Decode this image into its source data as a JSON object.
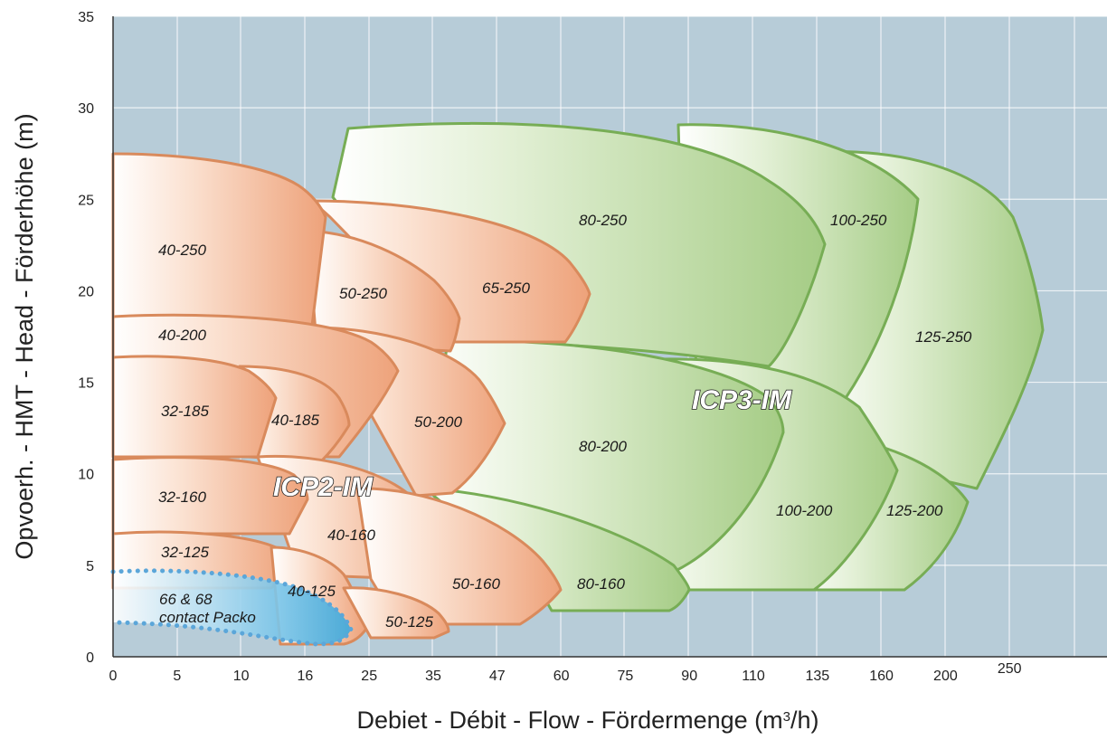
{
  "chart_data": {
    "type": "area",
    "title": "",
    "xlabel_main": "Debiet - Débit - Flow - Fördermenge (m",
    "xlabel_sup": "3",
    "xlabel_end": "/h)",
    "ylabel": "Opvoerh. - HMT - Head - Förderhöhe (m)",
    "x_ticks": [
      "0",
      "5",
      "10",
      "16",
      "25",
      "35",
      "47",
      "60",
      "75",
      "90",
      "110",
      "135",
      "160",
      "200",
      "250"
    ],
    "y_ticks": [
      0,
      5,
      10,
      15,
      20,
      25,
      30,
      35
    ],
    "ylim": [
      0,
      35
    ],
    "grid": true,
    "group_labels": [
      {
        "id": "icp2",
        "text": "ICP2-IM"
      },
      {
        "id": "icp3",
        "text": "ICP3-IM"
      }
    ],
    "packo": {
      "line1": "66 & 68",
      "line2": "contact Packo"
    },
    "zones": [
      {
        "label": "40-250",
        "family": "ICP2-IM",
        "flow_from": 0,
        "flow_to": 16,
        "head_min": 17.5,
        "head_max": 27.5
      },
      {
        "label": "50-250",
        "family": "ICP2-IM",
        "flow_from": 16,
        "flow_to": 35,
        "head_min": 17.0,
        "head_max": 24.5
      },
      {
        "label": "65-250",
        "family": "ICP2-IM",
        "flow_from": 16,
        "flow_to": 60,
        "head_min": 17.5,
        "head_max": 25.0
      },
      {
        "label": "40-200",
        "family": "ICP2-IM",
        "flow_from": 0,
        "flow_to": 35,
        "head_min": 11.0,
        "head_max": 18.5
      },
      {
        "label": "50-200",
        "family": "ICP2-IM",
        "flow_from": 25,
        "flow_to": 47,
        "head_min": 8.0,
        "head_max": 17.5
      },
      {
        "label": "32-185",
        "family": "ICP2-IM",
        "flow_from": 0,
        "flow_to": 16,
        "head_min": 10.5,
        "head_max": 16.5
      },
      {
        "label": "40-185",
        "family": "ICP2-IM",
        "flow_from": 10,
        "flow_to": 25,
        "head_min": 10.0,
        "head_max": 15.5
      },
      {
        "label": "32-160",
        "family": "ICP2-IM",
        "flow_from": 0,
        "flow_to": 16,
        "head_min": 6.5,
        "head_max": 11.0
      },
      {
        "label": "40-160",
        "family": "ICP2-IM",
        "flow_from": 10,
        "flow_to": 35,
        "head_min": 5.5,
        "head_max": 11.0
      },
      {
        "label": "32-125",
        "family": "ICP2-IM",
        "flow_from": 0,
        "flow_to": 16,
        "head_min": 4.0,
        "head_max": 6.5
      },
      {
        "label": "40-125",
        "family": "ICP2-IM",
        "flow_from": 16,
        "flow_to": 25,
        "head_min": 1.0,
        "head_max": 6.0
      },
      {
        "label": "50-125",
        "family": "ICP2-IM",
        "flow_from": 25,
        "flow_to": 35,
        "head_min": 1.0,
        "head_max": 4.0
      },
      {
        "label": "50-160",
        "family": "ICP2-IM",
        "flow_from": 25,
        "flow_to": 60,
        "head_min": 2.0,
        "head_max": 8.5
      },
      {
        "label": "80-250",
        "family": "ICP3-IM",
        "flow_from": 35,
        "flow_to": 110,
        "head_min": 17.0,
        "head_max": 29.0
      },
      {
        "label": "100-250",
        "family": "ICP3-IM",
        "flow_from": 90,
        "flow_to": 160,
        "head_min": 14.5,
        "head_max": 29.0
      },
      {
        "label": "125-250",
        "family": "ICP3-IM",
        "flow_from": 135,
        "flow_to": 250,
        "head_min": 9.5,
        "head_max": 28.0
      },
      {
        "label": "80-200",
        "family": "ICP3-IM",
        "flow_from": 47,
        "flow_to": 110,
        "head_min": 5.0,
        "head_max": 17.5
      },
      {
        "label": "100-200",
        "family": "ICP3-IM",
        "flow_from": 90,
        "flow_to": 160,
        "head_min": 3.5,
        "head_max": 16.0
      },
      {
        "label": "125-200",
        "family": "ICP3-IM",
        "flow_from": 135,
        "flow_to": 200,
        "head_min": 3.5,
        "head_max": 12.0
      },
      {
        "label": "80-160",
        "family": "ICP3-IM",
        "flow_from": 47,
        "flow_to": 75,
        "head_min": 2.5,
        "head_max": 8.0
      }
    ],
    "colors": {
      "background": "#b7ccd8",
      "grid": "#ffffff",
      "orange_edge": "#d98a5c",
      "orange_fill": "#efa47c",
      "green_edge": "#77ad55",
      "green_fill": "#a9cf8a",
      "blue_fill": "#4fb3e0",
      "blue_dots": "#5ba6d9"
    }
  }
}
